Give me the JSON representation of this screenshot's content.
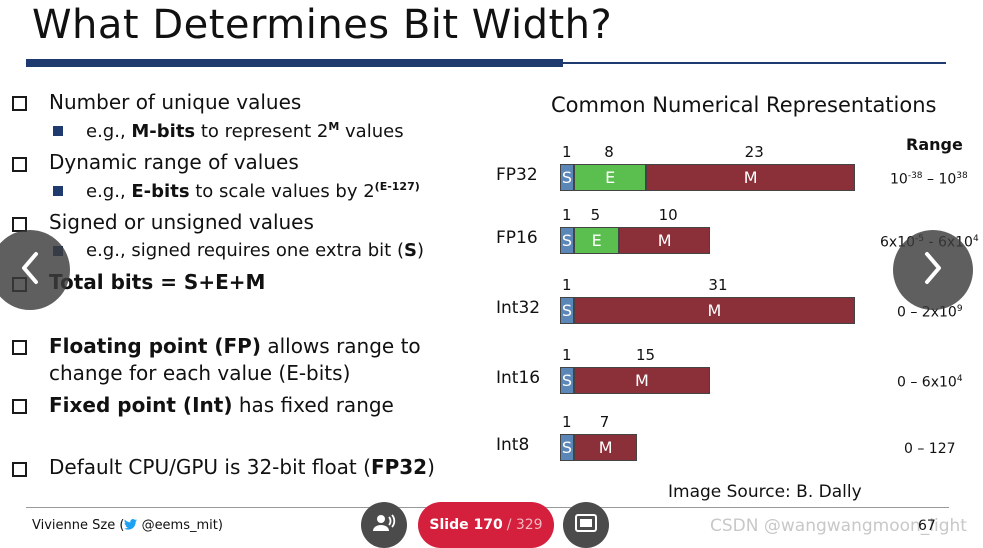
{
  "slide": {
    "title": "What Determines Bit Width?",
    "bullets": [
      {
        "text": "Number of unique values",
        "sub": {
          "pre": "e.g., ",
          "bold": "M-bits",
          "mid": " to represent 2",
          "sup": "M",
          "post": " values"
        }
      },
      {
        "text": "Dynamic range of values",
        "sub": {
          "pre": "e.g., ",
          "bold": "E-bits",
          "mid": " to scale values by 2",
          "sup": "(E-127)",
          "post": ""
        }
      },
      {
        "text": "Signed or unsigned values",
        "sub": {
          "pre": "e.g., signed requires one extra bit (",
          "bold": "S",
          "post": ")"
        }
      },
      {
        "bold": "Total bits = S+E+M"
      },
      {
        "bold": "Floating point (FP)",
        "text": " allows range to",
        "line2": "change for each value (E-bits)"
      },
      {
        "bold": "Fixed point (Int)",
        "text": " has fixed range"
      },
      {
        "text": "Default CPU/GPU is 32-bit float (",
        "bold": "FP32",
        "post": ")"
      }
    ],
    "chart_title": "Common Numerical Representations",
    "range_header": "Range",
    "image_source": "Image Source: B. Dally",
    "author": "Vivienne Sze (",
    "twitter": "@eems_mit)",
    "page_number": "67",
    "watermark": "CSDN @wangwangmoon_light"
  },
  "representations": [
    {
      "name": "FP32",
      "S": 1,
      "E": 8,
      "M": 23,
      "range": {
        "base1": "10",
        "exp1": "-38",
        "sep": " – ",
        "base2": "10",
        "exp2": "38"
      }
    },
    {
      "name": "FP16",
      "S": 1,
      "E": 5,
      "M": 10,
      "range": {
        "base1": "6x10",
        "exp1": "-5",
        "sep": " - ",
        "base2": "6x10",
        "exp2": "4"
      }
    },
    {
      "name": "Int32",
      "S": 1,
      "E": 0,
      "M": 31,
      "range": {
        "base1": "0 – 2x10",
        "exp1": "9",
        "sep": "",
        "base2": "",
        "exp2": ""
      }
    },
    {
      "name": "Int16",
      "S": 1,
      "E": 0,
      "M": 15,
      "range": {
        "base1": "0 – 6x10",
        "exp1": "4",
        "sep": "",
        "base2": "",
        "exp2": ""
      }
    },
    {
      "name": "Int8",
      "S": 1,
      "E": 0,
      "M": 7,
      "range": {
        "base1": "0 – 127",
        "exp1": "",
        "sep": "",
        "base2": "",
        "exp2": ""
      }
    }
  ],
  "segment_labels": {
    "S": "S",
    "E": "E",
    "M": "M"
  },
  "viewer": {
    "slide_label": "Slide 170",
    "slide_total": "/ 329"
  },
  "colors": {
    "sign": "#5b86b8",
    "exponent": "#5bbf4f",
    "mantissa": "#8b3039",
    "title_bar": "#1f3a6e",
    "slide_counter": "#d41f3d"
  },
  "icons": [
    "chevron-left-icon",
    "chevron-right-icon",
    "twitter-bird-icon",
    "people-icon",
    "present-screen-icon"
  ]
}
